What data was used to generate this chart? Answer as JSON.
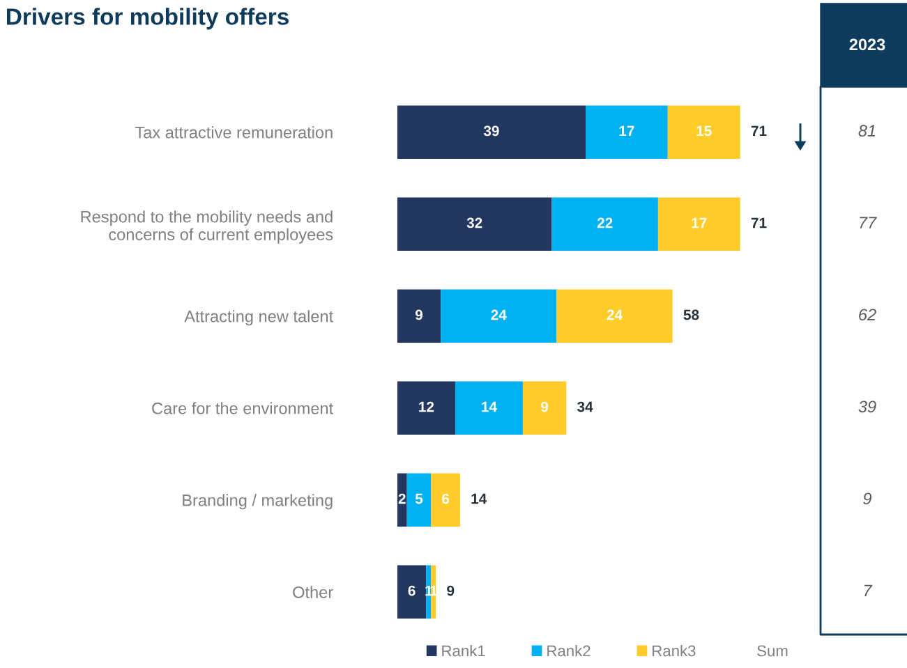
{
  "chart_data": {
    "type": "bar",
    "title": "Drivers for mobility offers",
    "orientation": "horizontal",
    "stacked": true,
    "categories": [
      "Tax attractive remuneration",
      "Respond to the mobility needs and\nconcerns of current employees",
      "Attracting new talent",
      "Care for the environment",
      "Branding / marketing",
      "Other"
    ],
    "series": [
      {
        "name": "Rank1",
        "color": "#22375f",
        "values": [
          39,
          32,
          9,
          12,
          2,
          6
        ]
      },
      {
        "name": "Rank2",
        "color": "#00b0f0",
        "values": [
          17,
          22,
          24,
          14,
          5,
          1
        ]
      },
      {
        "name": "Rank3",
        "color": "#ffcc29",
        "values": [
          15,
          17,
          24,
          9,
          6,
          1
        ]
      }
    ],
    "data_labels": true,
    "totals": [
      "71",
      "71",
      "58",
      "34",
      "14",
      "9"
    ],
    "legend": "bottom",
    "grid": false,
    "annotations": [
      "Sum",
      "2023",
      "81",
      "77",
      "62",
      "39",
      "9",
      "7"
    ]
  }
}
